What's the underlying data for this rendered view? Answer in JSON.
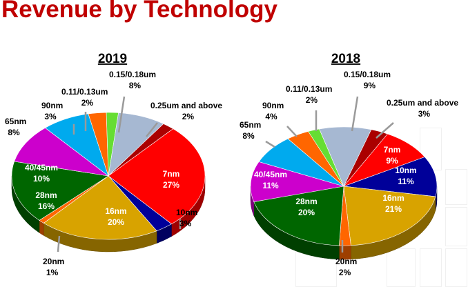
{
  "page_title": "Revenue by Technology",
  "chart_data": [
    {
      "type": "pie",
      "title": "2019",
      "unit": "%",
      "slices": [
        {
          "label": "7nm",
          "value": 27,
          "value_label": "27%",
          "color": "#ff0000"
        },
        {
          "label": "10nm",
          "value": 3,
          "value_label": "3%",
          "color": "#000099"
        },
        {
          "label": "16nm",
          "value": 20,
          "value_label": "20%",
          "color": "#d8a300"
        },
        {
          "label": "20nm",
          "value": 1,
          "value_label": "1%",
          "color": "#ff6600"
        },
        {
          "label": "28nm",
          "value": 16,
          "value_label": "16%",
          "color": "#006600"
        },
        {
          "label": "40/45nm",
          "value": 10,
          "value_label": "10%",
          "color": "#cc00cc"
        },
        {
          "label": "65nm",
          "value": 8,
          "value_label": "8%",
          "color": "#00aaee"
        },
        {
          "label": "90nm",
          "value": 3,
          "value_label": "3%",
          "color": "#ff6600"
        },
        {
          "label": "0.11/0.13um",
          "value": 2,
          "value_label": "2%",
          "color": "#66dd33"
        },
        {
          "label": "0.15/0.18um",
          "value": 8,
          "value_label": "8%",
          "color": "#a6b8d2"
        },
        {
          "label": "0.25um and above",
          "value": 2,
          "value_label": "2%",
          "color": "#aa0000"
        }
      ]
    },
    {
      "type": "pie",
      "title": "2018",
      "unit": "%",
      "slices": [
        {
          "label": "7nm",
          "value": 9,
          "value_label": "9%",
          "color": "#ff0000"
        },
        {
          "label": "10nm",
          "value": 11,
          "value_label": "11%",
          "color": "#000099"
        },
        {
          "label": "16nm",
          "value": 21,
          "value_label": "21%",
          "color": "#d8a300"
        },
        {
          "label": "20nm",
          "value": 2,
          "value_label": "2%",
          "color": "#ff6600"
        },
        {
          "label": "28nm",
          "value": 20,
          "value_label": "20%",
          "color": "#006600"
        },
        {
          "label": "40/45nm",
          "value": 11,
          "value_label": "11%",
          "color": "#cc00cc"
        },
        {
          "label": "65nm",
          "value": 8,
          "value_label": "8%",
          "color": "#00aaee"
        },
        {
          "label": "90nm",
          "value": 4,
          "value_label": "4%",
          "color": "#ff6600"
        },
        {
          "label": "0.11/0.13um",
          "value": 2,
          "value_label": "2%",
          "color": "#66dd33"
        },
        {
          "label": "0.15/0.18um",
          "value": 9,
          "value_label": "9%",
          "color": "#a6b8d2"
        },
        {
          "label": "0.25um and above",
          "value": 3,
          "value_label": "3%",
          "color": "#aa0000"
        }
      ]
    }
  ]
}
